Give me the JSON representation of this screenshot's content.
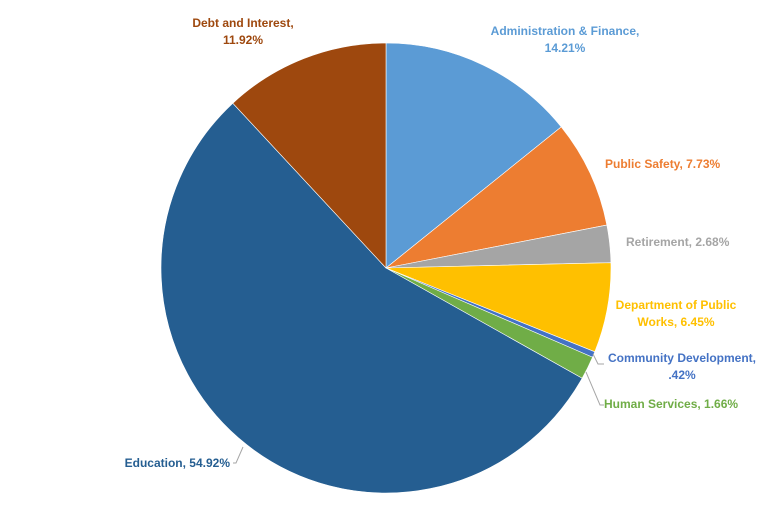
{
  "chart_data": {
    "type": "pie",
    "title": "",
    "legend": "none",
    "slices": [
      {
        "category": "Administration & Finance",
        "value": 14.21,
        "value_label": "14.21%",
        "color": "#5b9bd5"
      },
      {
        "category": "Public Safety",
        "value": 7.73,
        "value_label": "7.73%",
        "color": "#ed7d31"
      },
      {
        "category": "Retirement",
        "value": 2.68,
        "value_label": "2.68%",
        "color": "#a5a5a5"
      },
      {
        "category": "Department of Public Works",
        "value": 6.45,
        "value_label": "6.45%",
        "color": "#ffc000"
      },
      {
        "category": "Community Development",
        "value": 0.42,
        "value_label": ".42%",
        "color": "#4472c4"
      },
      {
        "category": "Human Services",
        "value": 1.66,
        "value_label": "1.66%",
        "color": "#70ad47"
      },
      {
        "category": "Education",
        "value": 54.92,
        "value_label": "54.92%",
        "color": "#255e91"
      },
      {
        "category": "Debt and Interest",
        "value": 11.92,
        "value_label": "11.92%",
        "color": "#9e480e"
      }
    ]
  }
}
